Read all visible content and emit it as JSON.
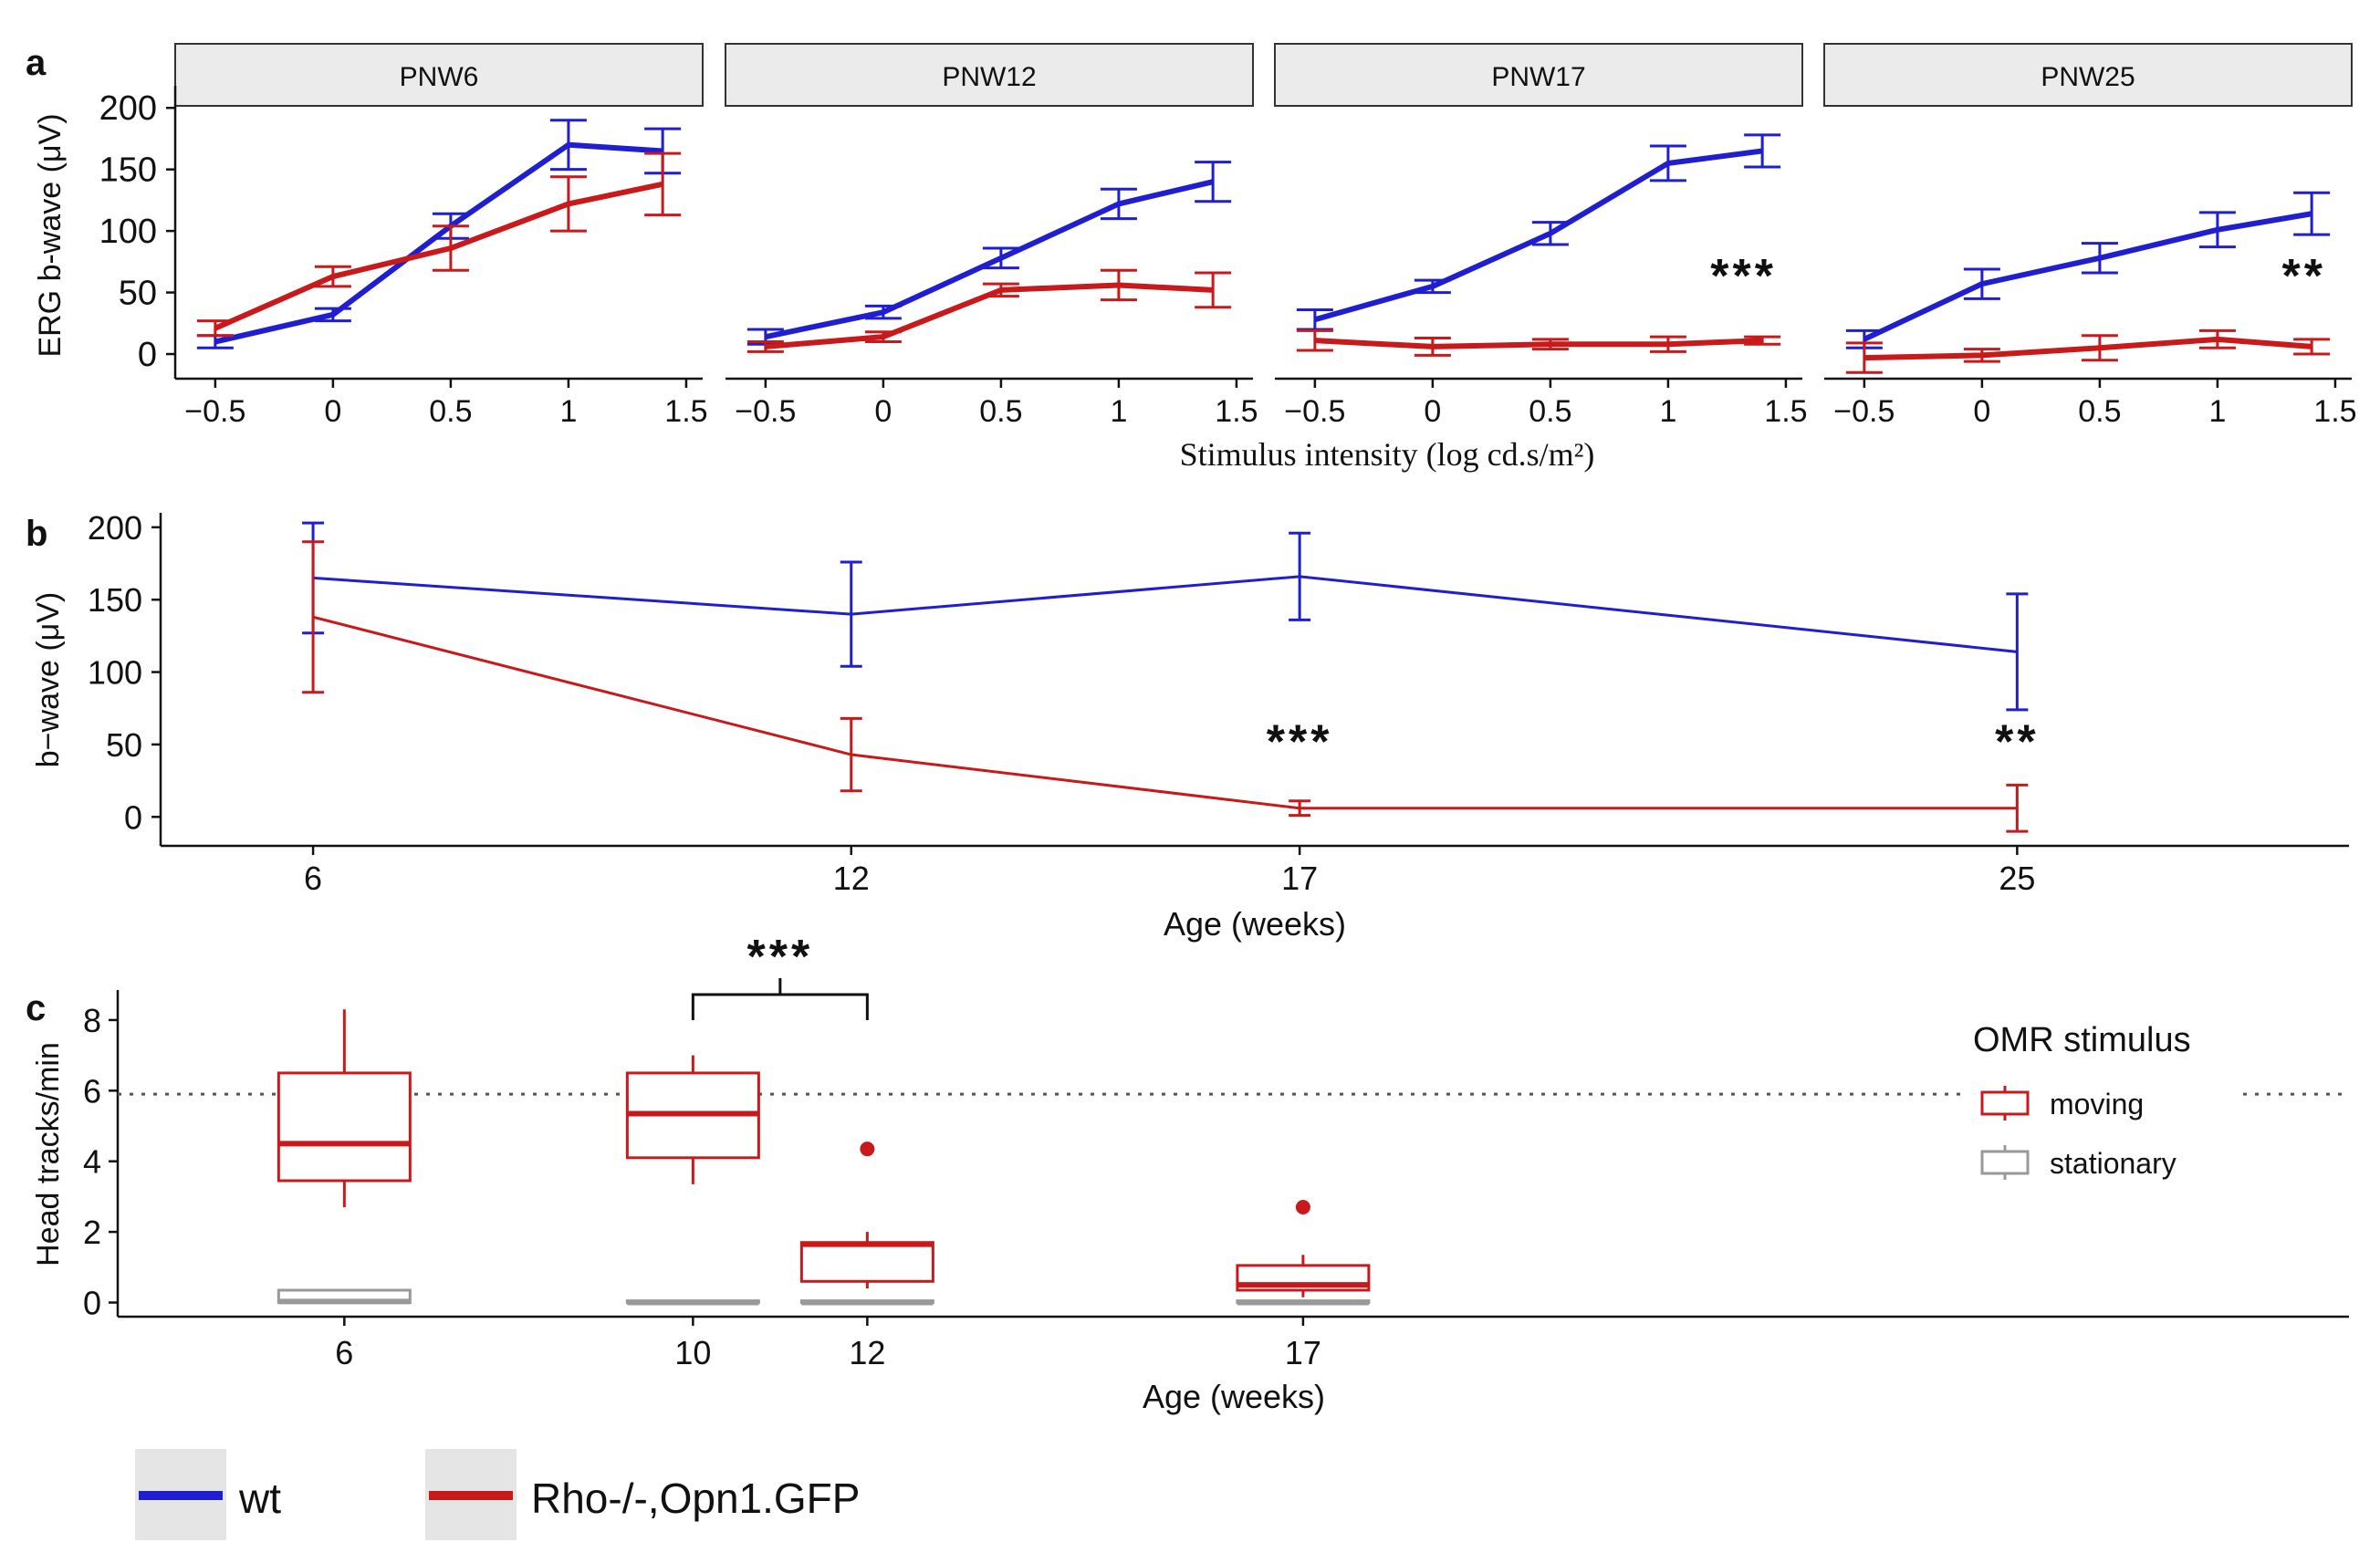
{
  "colors": {
    "wt": "#1f1fd0",
    "rho": "#c8191b",
    "stationary": "#999999",
    "strip": "#ebebeb",
    "legend_key_bg": "#e5e5e5"
  },
  "legend": {
    "wt": "wt",
    "rho": "Rho-/-,Opn1.GFP"
  },
  "chart_data": [
    {
      "panel": "a",
      "type": "line",
      "ylabel": "ERG b-wave (μV)",
      "xlabel": "Stimulus intensity (log cd.s/m²)",
      "x": [
        -0.5,
        0,
        0.5,
        1,
        1.4
      ],
      "xticks": [
        -0.5,
        0,
        0.5,
        1,
        1.5
      ],
      "xtick_labels": [
        "−0.5",
        "0",
        "0.5",
        "1",
        "1.5"
      ],
      "xlim": [
        -0.67,
        1.57
      ],
      "ylim": [
        -20,
        215
      ],
      "yticks": [
        0,
        50,
        100,
        150,
        200
      ],
      "facets": [
        {
          "title": "PNW6",
          "significance": "",
          "series": [
            {
              "name": "wt",
              "values": [
                10,
                32,
                104,
                170,
                165
              ],
              "err": [
                5,
                5,
                10,
                20,
                18
              ]
            },
            {
              "name": "Rho-/-,Opn1.GFP",
              "values": [
                21,
                63,
                86,
                122,
                138
              ],
              "err": [
                6,
                8,
                18,
                22,
                25
              ]
            }
          ]
        },
        {
          "title": "PNW12",
          "significance": "",
          "series": [
            {
              "name": "wt",
              "values": [
                14,
                34,
                78,
                122,
                140
              ],
              "err": [
                6,
                5,
                8,
                12,
                16
              ]
            },
            {
              "name": "Rho-/-,Opn1.GFP",
              "values": [
                6,
                14,
                52,
                56,
                52
              ],
              "err": [
                4,
                4,
                5,
                12,
                14
              ]
            }
          ]
        },
        {
          "title": "PNW17",
          "significance": "***",
          "series": [
            {
              "name": "wt",
              "values": [
                28,
                55,
                98,
                155,
                165
              ],
              "err": [
                8,
                5,
                9,
                14,
                13
              ]
            },
            {
              "name": "Rho-/-,Opn1.GFP",
              "values": [
                11,
                6,
                8,
                8,
                11
              ],
              "err": [
                8,
                7,
                4,
                6,
                3
              ]
            }
          ]
        },
        {
          "title": "PNW25",
          "significance": "**",
          "series": [
            {
              "name": "wt",
              "values": [
                12,
                57,
                78,
                101,
                114
              ],
              "err": [
                7,
                12,
                12,
                14,
                17
              ]
            },
            {
              "name": "Rho-/-,Opn1.GFP",
              "values": [
                -3,
                -1,
                5,
                12,
                6
              ],
              "err": [
                12,
                5,
                10,
                7,
                6
              ]
            }
          ]
        }
      ]
    },
    {
      "panel": "b",
      "type": "line",
      "ylabel": "b−wave (μV)",
      "xlabel": "Age (weeks)",
      "x": [
        6,
        12,
        17,
        25
      ],
      "xticks": [
        6,
        12,
        17,
        25
      ],
      "xtick_labels": [
        "6",
        "12",
        "17",
        "25"
      ],
      "xlim": [
        4.3,
        28.7
      ],
      "ylim": [
        -20,
        210
      ],
      "yticks": [
        0,
        50,
        100,
        150,
        200
      ],
      "series": [
        {
          "name": "wt",
          "values": [
            165,
            140,
            166,
            114
          ],
          "err": [
            38,
            36,
            30,
            40
          ]
        },
        {
          "name": "Rho-/-,Opn1.GFP",
          "values": [
            138,
            43,
            6,
            6
          ],
          "err": [
            52,
            25,
            5,
            16
          ]
        }
      ],
      "annotations": [
        {
          "x": 17,
          "y": 52,
          "text": "***"
        },
        {
          "x": 25,
          "y": 52,
          "text": "**"
        }
      ]
    },
    {
      "panel": "c",
      "type": "box",
      "ylabel": "Head tracks/min",
      "xlabel": "Age (weeks)",
      "xticks": [
        6,
        10,
        12,
        17
      ],
      "xtick_labels": [
        "6",
        "10",
        "12",
        "17"
      ],
      "xlim": [
        3.4,
        29.0
      ],
      "ylim": [
        -0.4,
        8.85
      ],
      "yticks": [
        0,
        2,
        4,
        6,
        8
      ],
      "reference_line": 5.9,
      "legend_title": "OMR stimulus",
      "legend_labels": {
        "moving": "moving",
        "stationary": "stationary"
      },
      "groups": [
        {
          "age": 6,
          "stimulus": "moving",
          "x": 6,
          "min": 2.7,
          "q1": 3.45,
          "median": 4.5,
          "q3": 6.5,
          "max": 8.3,
          "outliers": []
        },
        {
          "age": 6,
          "stimulus": "stationary",
          "x": 6,
          "min": 0,
          "q1": 0,
          "median": 0.03,
          "q3": 0.35,
          "max": 0.35,
          "outliers": []
        },
        {
          "age": 10,
          "stimulus": "moving",
          "x": 10,
          "min": 3.35,
          "q1": 4.1,
          "median": 5.35,
          "q3": 6.5,
          "max": 7.0,
          "outliers": []
        },
        {
          "age": 10,
          "stimulus": "stationary",
          "x": 10,
          "min": 0,
          "q1": 0,
          "median": 0,
          "q3": 0.05,
          "max": 0.05,
          "outliers": []
        },
        {
          "age": 12,
          "stimulus": "moving",
          "x": 12,
          "min": 0.4,
          "q1": 0.6,
          "median": 1.65,
          "q3": 1.7,
          "max": 2.0,
          "outliers": [
            4.35
          ]
        },
        {
          "age": 12,
          "stimulus": "stationary",
          "x": 12,
          "min": 0,
          "q1": 0,
          "median": 0,
          "q3": 0.05,
          "max": 0.05,
          "outliers": []
        },
        {
          "age": 17,
          "stimulus": "moving",
          "x": 17,
          "min": 0.15,
          "q1": 0.35,
          "median": 0.5,
          "q3": 1.05,
          "max": 1.35,
          "outliers": [
            2.7
          ]
        },
        {
          "age": 17,
          "stimulus": "stationary",
          "x": 17,
          "min": 0,
          "q1": 0,
          "median": 0,
          "q3": 0.05,
          "max": 0.05,
          "outliers": []
        }
      ],
      "significance": {
        "from": 10,
        "to": 12,
        "text": "***"
      }
    }
  ],
  "panel_labels": {
    "a": "a",
    "b": "b",
    "c": "c"
  }
}
